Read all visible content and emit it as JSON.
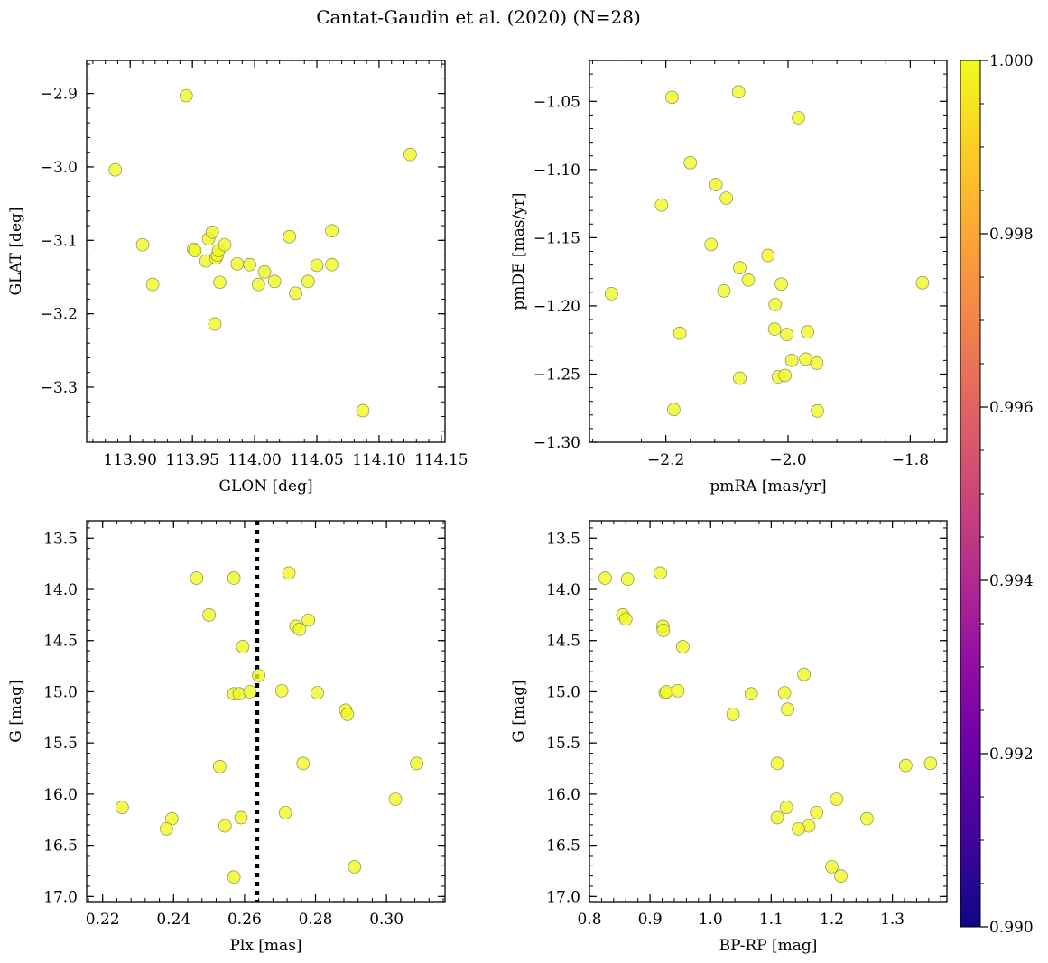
{
  "figure": {
    "title": "Cantat-Gaudin et al. (2020) (N=28)"
  },
  "colorbar": {
    "min": 0.99,
    "max": 1.0,
    "ticks": [
      "0.990",
      "0.992",
      "0.994",
      "0.996",
      "0.998",
      "1.000"
    ],
    "colormap": "plasma"
  },
  "marker": {
    "color": "#f0f921",
    "edge_color": "#8a8a5a"
  },
  "chart_data": [
    {
      "type": "scatter",
      "title": "",
      "xlabel": "GLON [deg]",
      "ylabel": "GLAT [deg]",
      "xlim": [
        113.865,
        114.153
      ],
      "ylim": [
        -3.375,
        -2.855
      ],
      "xticks": [
        113.9,
        113.95,
        114.0,
        114.05,
        114.1,
        114.15
      ],
      "xticklabels": [
        "113.90",
        "113.95",
        "114.00",
        "114.05",
        "114.10",
        "114.15"
      ],
      "yticks": [
        -2.9,
        -3.0,
        -3.1,
        -3.2,
        -3.3
      ],
      "yticklabels": [
        "−2.9",
        "−3.0",
        "−3.1",
        "−3.2",
        "−3.3"
      ],
      "grid": false,
      "points": [
        {
          "x": 113.888,
          "y": -3.004
        },
        {
          "x": 113.945,
          "y": -2.903
        },
        {
          "x": 114.125,
          "y": -2.983
        },
        {
          "x": 113.91,
          "y": -3.106
        },
        {
          "x": 113.918,
          "y": -3.16
        },
        {
          "x": 113.951,
          "y": -3.112
        },
        {
          "x": 113.952,
          "y": -3.114
        },
        {
          "x": 113.961,
          "y": -3.128
        },
        {
          "x": 113.963,
          "y": -3.098
        },
        {
          "x": 113.966,
          "y": -3.089
        },
        {
          "x": 113.968,
          "y": -3.214
        },
        {
          "x": 113.969,
          "y": -3.124
        },
        {
          "x": 113.97,
          "y": -3.12
        },
        {
          "x": 113.971,
          "y": -3.114
        },
        {
          "x": 113.972,
          "y": -3.157
        },
        {
          "x": 113.976,
          "y": -3.106
        },
        {
          "x": 113.986,
          "y": -3.132
        },
        {
          "x": 113.996,
          "y": -3.133
        },
        {
          "x": 114.003,
          "y": -3.16
        },
        {
          "x": 114.008,
          "y": -3.143
        },
        {
          "x": 114.016,
          "y": -3.156
        },
        {
          "x": 114.028,
          "y": -3.095
        },
        {
          "x": 114.033,
          "y": -3.172
        },
        {
          "x": 114.043,
          "y": -3.156
        },
        {
          "x": 114.05,
          "y": -3.134
        },
        {
          "x": 114.062,
          "y": -3.087
        },
        {
          "x": 114.062,
          "y": -3.133
        },
        {
          "x": 114.087,
          "y": -3.332
        }
      ]
    },
    {
      "type": "scatter",
      "title": "",
      "xlabel": "pmRA [mas/yr]",
      "ylabel": "pmDE [mas/yr]",
      "xlim": [
        -2.325,
        -1.74
      ],
      "ylim": [
        -1.3,
        -1.02
      ],
      "xticks": [
        -2.2,
        -2.0,
        -1.8
      ],
      "xticklabels": [
        "−2.2",
        "−2.0",
        "−1.8"
      ],
      "yticks": [
        -1.05,
        -1.1,
        -1.15,
        -1.2,
        -1.25,
        -1.3
      ],
      "yticklabels": [
        "−1.05",
        "−1.10",
        "−1.15",
        "−1.20",
        "−1.25",
        "−1.30"
      ],
      "grid": false,
      "points": [
        {
          "x": -2.289,
          "y": -1.191
        },
        {
          "x": -2.19,
          "y": -1.047
        },
        {
          "x": -2.081,
          "y": -1.043
        },
        {
          "x": -1.983,
          "y": -1.062
        },
        {
          "x": -2.16,
          "y": -1.095
        },
        {
          "x": -2.118,
          "y": -1.111
        },
        {
          "x": -2.101,
          "y": -1.121
        },
        {
          "x": -2.207,
          "y": -1.126
        },
        {
          "x": -2.126,
          "y": -1.155
        },
        {
          "x": -2.033,
          "y": -1.163
        },
        {
          "x": -2.079,
          "y": -1.172
        },
        {
          "x": -2.065,
          "y": -1.181
        },
        {
          "x": -2.011,
          "y": -1.184
        },
        {
          "x": -2.105,
          "y": -1.189
        },
        {
          "x": -2.021,
          "y": -1.199
        },
        {
          "x": -1.78,
          "y": -1.183
        },
        {
          "x": -2.022,
          "y": -1.217
        },
        {
          "x": -1.968,
          "y": -1.219
        },
        {
          "x": -2.177,
          "y": -1.22
        },
        {
          "x": -2.002,
          "y": -1.221
        },
        {
          "x": -1.994,
          "y": -1.24
        },
        {
          "x": -1.971,
          "y": -1.239
        },
        {
          "x": -1.953,
          "y": -1.242
        },
        {
          "x": -2.079,
          "y": -1.253
        },
        {
          "x": -2.016,
          "y": -1.252
        },
        {
          "x": -2.005,
          "y": -1.251
        },
        {
          "x": -2.187,
          "y": -1.276
        },
        {
          "x": -1.952,
          "y": -1.277
        }
      ]
    },
    {
      "type": "scatter",
      "title": "",
      "xlabel": "Plx [mas]",
      "ylabel": "G [mag]",
      "xlim": [
        0.2155,
        0.3165
      ],
      "ylim": [
        17.05,
        13.33
      ],
      "y_inverted": true,
      "xticks": [
        0.22,
        0.24,
        0.26,
        0.28,
        0.3
      ],
      "xticklabels": [
        "0.22",
        "0.24",
        "0.26",
        "0.28",
        "0.30"
      ],
      "yticks": [
        13.5,
        14.0,
        14.5,
        15.0,
        15.5,
        16.0,
        16.5,
        17.0
      ],
      "yticklabels": [
        "13.5",
        "14.0",
        "14.5",
        "15.0",
        "15.5",
        "16.0",
        "16.5",
        "17.0"
      ],
      "grid": false,
      "vline": {
        "x": 0.2635,
        "style": "dotted",
        "color": "#000000"
      },
      "points": [
        {
          "x": 0.2465,
          "y": 13.89
        },
        {
          "x": 0.257,
          "y": 13.89
        },
        {
          "x": 0.2725,
          "y": 13.84
        },
        {
          "x": 0.25,
          "y": 14.25
        },
        {
          "x": 0.2745,
          "y": 14.36
        },
        {
          "x": 0.2755,
          "y": 14.39
        },
        {
          "x": 0.278,
          "y": 14.3
        },
        {
          "x": 0.2595,
          "y": 14.56
        },
        {
          "x": 0.264,
          "y": 14.84
        },
        {
          "x": 0.257,
          "y": 15.02
        },
        {
          "x": 0.2585,
          "y": 15.02
        },
        {
          "x": 0.2615,
          "y": 15.0
        },
        {
          "x": 0.2705,
          "y": 14.99
        },
        {
          "x": 0.2805,
          "y": 15.01
        },
        {
          "x": 0.2885,
          "y": 15.18
        },
        {
          "x": 0.289,
          "y": 15.22
        },
        {
          "x": 0.253,
          "y": 15.73
        },
        {
          "x": 0.2765,
          "y": 15.7
        },
        {
          "x": 0.3085,
          "y": 15.7
        },
        {
          "x": 0.2255,
          "y": 16.13
        },
        {
          "x": 0.2395,
          "y": 16.24
        },
        {
          "x": 0.238,
          "y": 16.34
        },
        {
          "x": 0.2545,
          "y": 16.31
        },
        {
          "x": 0.259,
          "y": 16.23
        },
        {
          "x": 0.2715,
          "y": 16.18
        },
        {
          "x": 0.3025,
          "y": 16.05
        },
        {
          "x": 0.257,
          "y": 16.81
        },
        {
          "x": 0.291,
          "y": 16.71
        }
      ]
    },
    {
      "type": "scatter",
      "title": "",
      "xlabel": "BP-RP [mag]",
      "ylabel": "G [mag]",
      "xlim": [
        0.8,
        1.39
      ],
      "ylim": [
        17.05,
        13.33
      ],
      "y_inverted": true,
      "xticks": [
        0.8,
        0.9,
        1.0,
        1.1,
        1.2,
        1.3
      ],
      "xticklabels": [
        "0.8",
        "0.9",
        "1.0",
        "1.1",
        "1.2",
        "1.3"
      ],
      "yticks": [
        13.5,
        14.0,
        14.5,
        15.0,
        15.5,
        16.0,
        16.5,
        17.0
      ],
      "yticklabels": [
        "13.5",
        "14.0",
        "14.5",
        "15.0",
        "15.5",
        "16.0",
        "16.5",
        "17.0"
      ],
      "grid": false,
      "points": [
        {
          "x": 0.826,
          "y": 13.89
        },
        {
          "x": 0.863,
          "y": 13.9
        },
        {
          "x": 0.917,
          "y": 13.84
        },
        {
          "x": 0.855,
          "y": 14.25
        },
        {
          "x": 0.86,
          "y": 14.29
        },
        {
          "x": 0.921,
          "y": 14.36
        },
        {
          "x": 0.922,
          "y": 14.4
        },
        {
          "x": 0.954,
          "y": 14.56
        },
        {
          "x": 0.925,
          "y": 15.01
        },
        {
          "x": 0.927,
          "y": 15.0
        },
        {
          "x": 0.946,
          "y": 14.99
        },
        {
          "x": 1.037,
          "y": 15.22
        },
        {
          "x": 1.067,
          "y": 15.02
        },
        {
          "x": 1.122,
          "y": 15.01
        },
        {
          "x": 1.127,
          "y": 15.17
        },
        {
          "x": 1.154,
          "y": 14.83
        },
        {
          "x": 1.11,
          "y": 15.7
        },
        {
          "x": 1.322,
          "y": 15.72
        },
        {
          "x": 1.363,
          "y": 15.7
        },
        {
          "x": 1.208,
          "y": 16.05
        },
        {
          "x": 1.125,
          "y": 16.13
        },
        {
          "x": 1.175,
          "y": 16.18
        },
        {
          "x": 1.11,
          "y": 16.23
        },
        {
          "x": 1.258,
          "y": 16.24
        },
        {
          "x": 1.162,
          "y": 16.31
        },
        {
          "x": 1.145,
          "y": 16.34
        },
        {
          "x": 1.2,
          "y": 16.71
        },
        {
          "x": 1.215,
          "y": 16.8
        }
      ]
    }
  ]
}
